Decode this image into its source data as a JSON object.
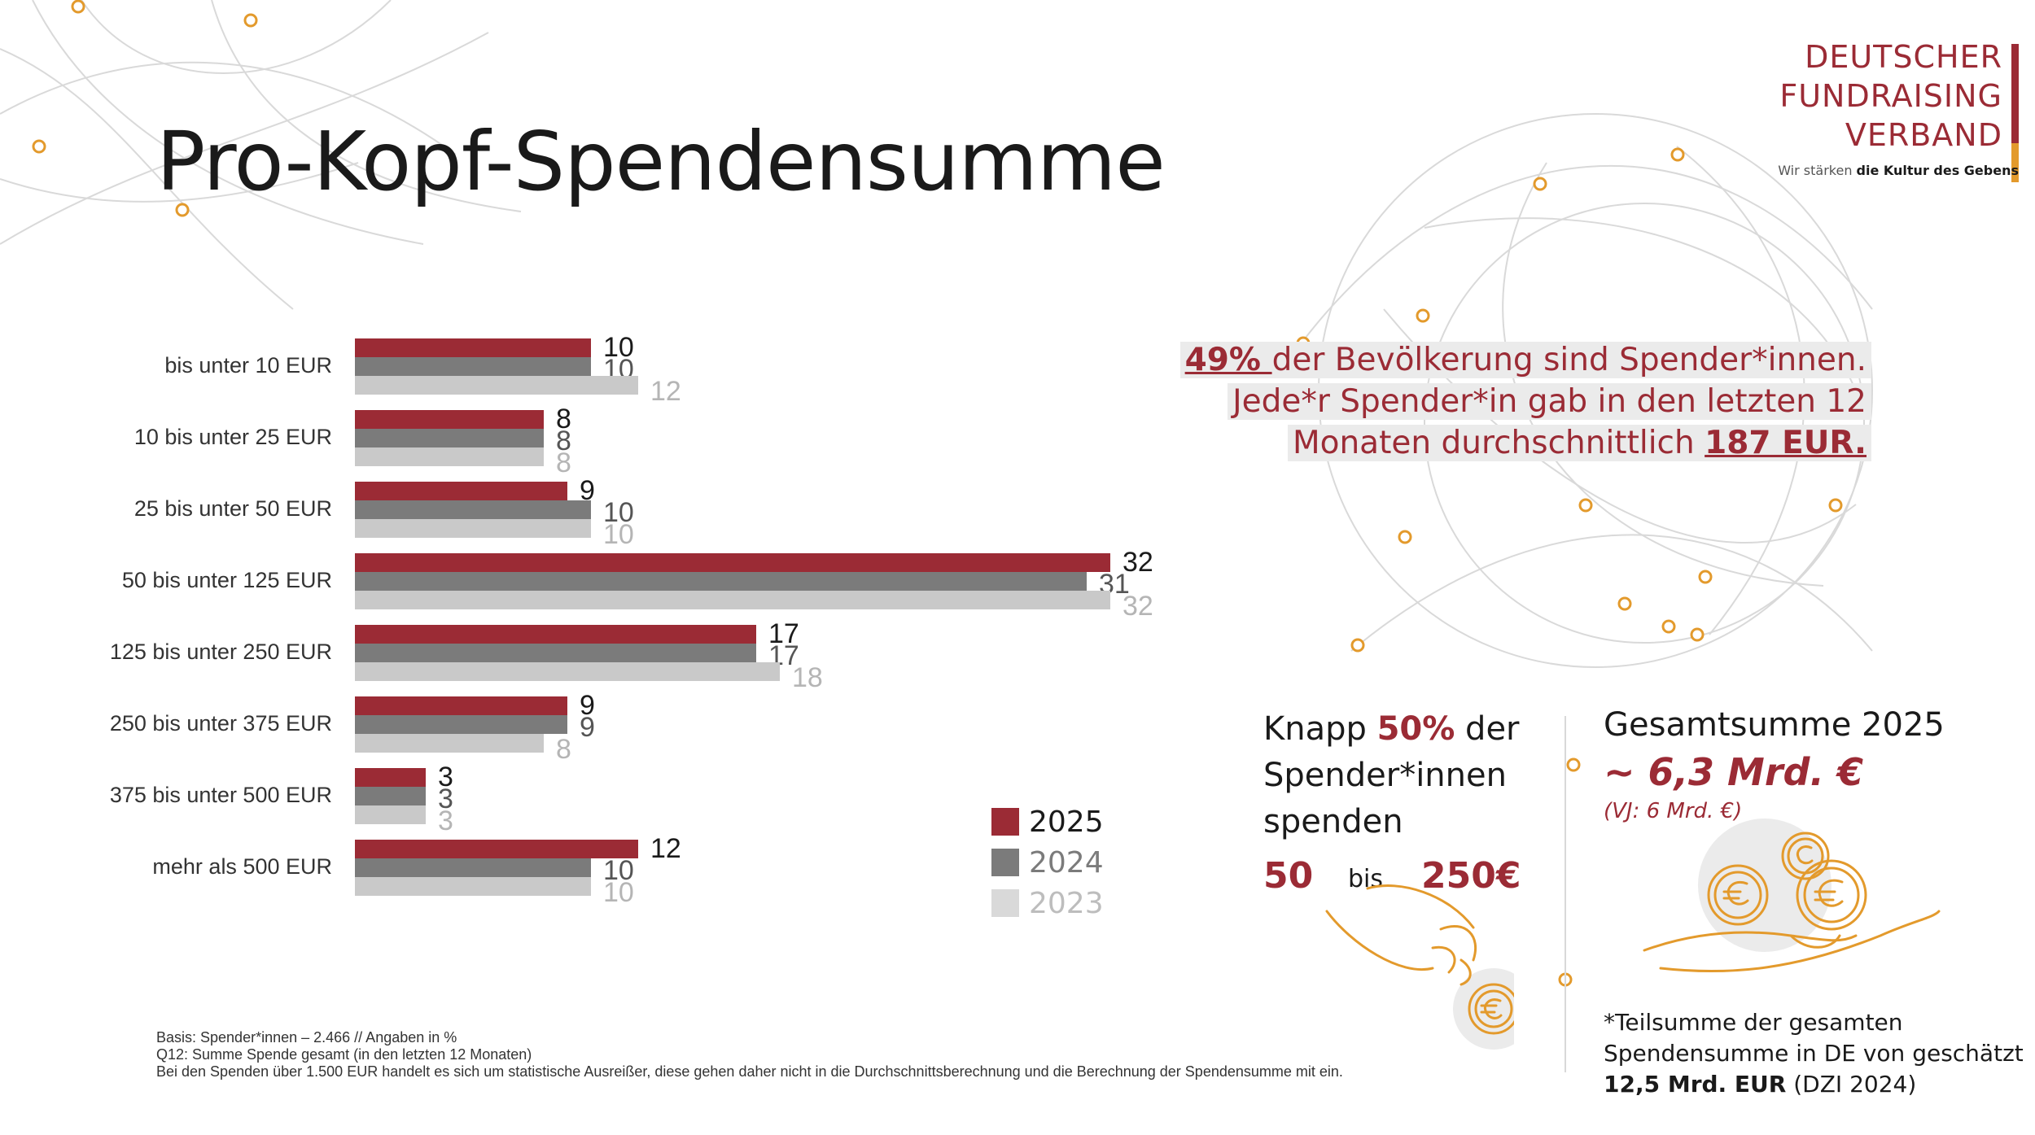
{
  "title": "Pro-Kopf-Spendensumme",
  "logo": {
    "line1": "DEUTSCHER",
    "line2": "FUNDRAISING",
    "line3": "VERBAND",
    "tagline_pre": "Wir stärken ",
    "tagline_bold": "die Kultur des Gebens"
  },
  "colors": {
    "y2025": "#9b2b35",
    "y2024": "#7b7b7b",
    "y2023": "#c9c9c9",
    "accent": "#e39a2c"
  },
  "chart_data": {
    "type": "bar",
    "orientation": "horizontal",
    "title": "",
    "xlabel": "",
    "ylabel": "",
    "unit": "Angaben in %",
    "xlim": [
      0,
      35
    ],
    "grid": false,
    "legend_position": "bottom-right",
    "categories": [
      "bis unter 10 EUR",
      "10 bis unter 25 EUR",
      "25 bis unter 50 EUR",
      "50 bis unter 125 EUR",
      "125 bis unter 250 EUR",
      "250 bis unter 375 EUR",
      "375 bis unter 500 EUR",
      "mehr als 500 EUR"
    ],
    "series": [
      {
        "name": "2025",
        "color": "#9b2b35",
        "values": [
          10,
          8,
          9,
          32,
          17,
          9,
          3,
          12
        ]
      },
      {
        "name": "2024",
        "color": "#7b7b7b",
        "values": [
          10,
          8,
          10,
          31,
          17,
          9,
          3,
          10
        ]
      },
      {
        "name": "2023",
        "color": "#c9c9c9",
        "values": [
          12,
          8,
          10,
          32,
          18,
          8,
          3,
          10
        ]
      }
    ]
  },
  "legend": [
    {
      "label": "2025",
      "color": "#9b2b35",
      "text_color": "#1a1a1a"
    },
    {
      "label": "2024",
      "color": "#7b7b7b",
      "text_color": "#7b7b7b"
    },
    {
      "label": "2023",
      "color": "#d9d9d9",
      "text_color": "#bdbdbd"
    }
  ],
  "callout": {
    "line1_hl": "49% ",
    "line1_rest": "der Bevölkerung sind Spender*innen.",
    "line2": "Jede*r Spender*in  gab in den letzten 12",
    "line3_pre": "Monaten durchschnittlich ",
    "line3_hl": "187 EUR."
  },
  "knapp": {
    "pre": "Knapp ",
    "pct": "50%",
    "post": " der",
    "line2": "Spender*innen",
    "line3": "spenden",
    "from": "50",
    "mid": "bis",
    "to": "250€"
  },
  "gesamt": {
    "heading": "Gesamtsumme 2025",
    "value": "~ 6,3 Mrd. €",
    "previous": "(VJ: 6 Mrd. €)"
  },
  "footnote": {
    "line1": "*Teilsumme der gesamten",
    "line2": "Spendensumme in DE von geschätzt",
    "line3_bold": "12,5 Mrd. EUR",
    "line3_rest": " (DZI 2024)"
  },
  "basis": {
    "line1": "Basis: Spender*innen – 2.466 // Angaben in %",
    "line2": "Q12: Summe Spende gesamt (in den letzten 12 Monaten)",
    "line3": "Bei den Spenden über 1.500 EUR handelt es sich um statistische Ausreißer, diese gehen daher nicht in die Durchschnittsberechnung und die Berechnung der Spendensumme mit ein."
  }
}
